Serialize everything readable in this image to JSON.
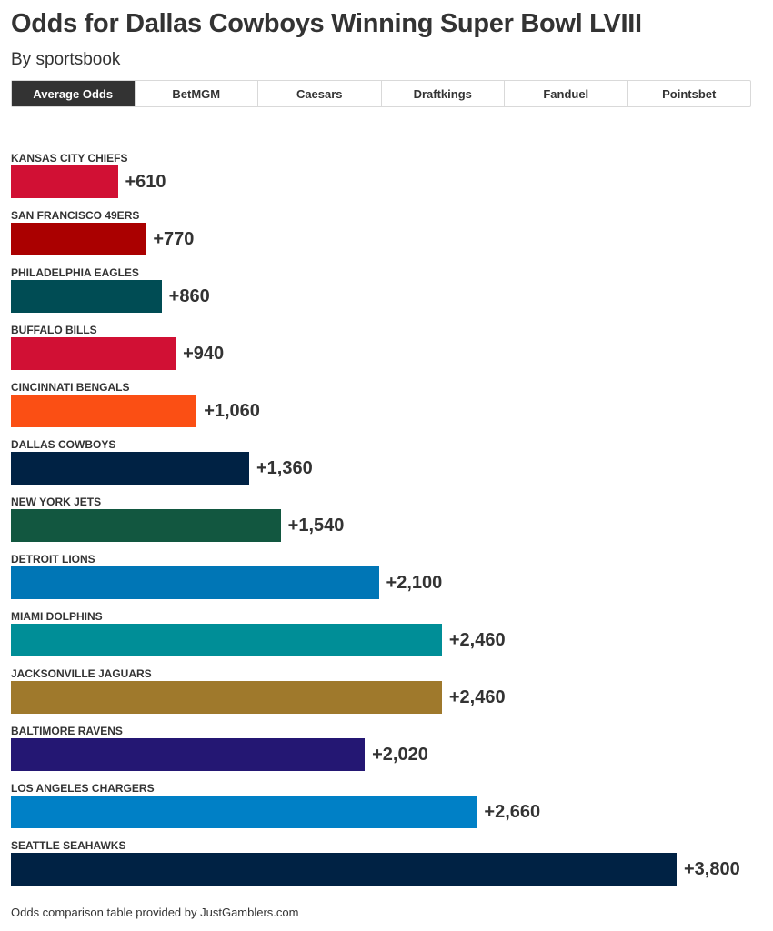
{
  "header": {
    "title": "Odds for Dallas Cowboys Winning Super Bowl LVIII",
    "subtitle": "By sportsbook"
  },
  "tabs": [
    {
      "label": "Average Odds",
      "active": true
    },
    {
      "label": "BetMGM",
      "active": false
    },
    {
      "label": "Caesars",
      "active": false
    },
    {
      "label": "Draftkings",
      "active": false
    },
    {
      "label": "Fanduel",
      "active": false
    },
    {
      "label": "Pointsbet",
      "active": false
    }
  ],
  "footer": "Odds comparison table provided by JustGamblers.com",
  "chart_data": {
    "type": "bar",
    "orientation": "horizontal",
    "title": "Odds for Dallas Cowboys Winning Super Bowl LVIII",
    "subtitle": "By sportsbook",
    "xlim": [
      0,
      3800
    ],
    "grid": false,
    "categories": [
      "KANSAS CITY CHIEFS",
      "SAN FRANCISCO 49ERS",
      "PHILADELPHIA EAGLES",
      "BUFFALO BILLS",
      "CINCINNATI BENGALS",
      "DALLAS COWBOYS",
      "NEW YORK JETS",
      "DETROIT LIONS",
      "MIAMI DOLPHINS",
      "JACKSONVILLE JAGUARS",
      "BALTIMORE RAVENS",
      "LOS ANGELES CHARGERS",
      "SEATTLE SEAHAWKS"
    ],
    "values": [
      610,
      770,
      860,
      940,
      1060,
      1360,
      1540,
      2100,
      2460,
      2460,
      2020,
      2660,
      3800
    ],
    "value_labels": [
      "+610",
      "+770",
      "+860",
      "+940",
      "+1,060",
      "+1,360",
      "+1,540",
      "+2,100",
      "+2,460",
      "+2,460",
      "+2,020",
      "+2,660",
      "+3,800"
    ],
    "colors": [
      "#d11034",
      "#aa0000",
      "#004c54",
      "#d11034",
      "#fb4f14",
      "#002244",
      "#125740",
      "#0076b6",
      "#008e97",
      "#9f792c",
      "#241773",
      "#0080c6",
      "#002244"
    ]
  }
}
